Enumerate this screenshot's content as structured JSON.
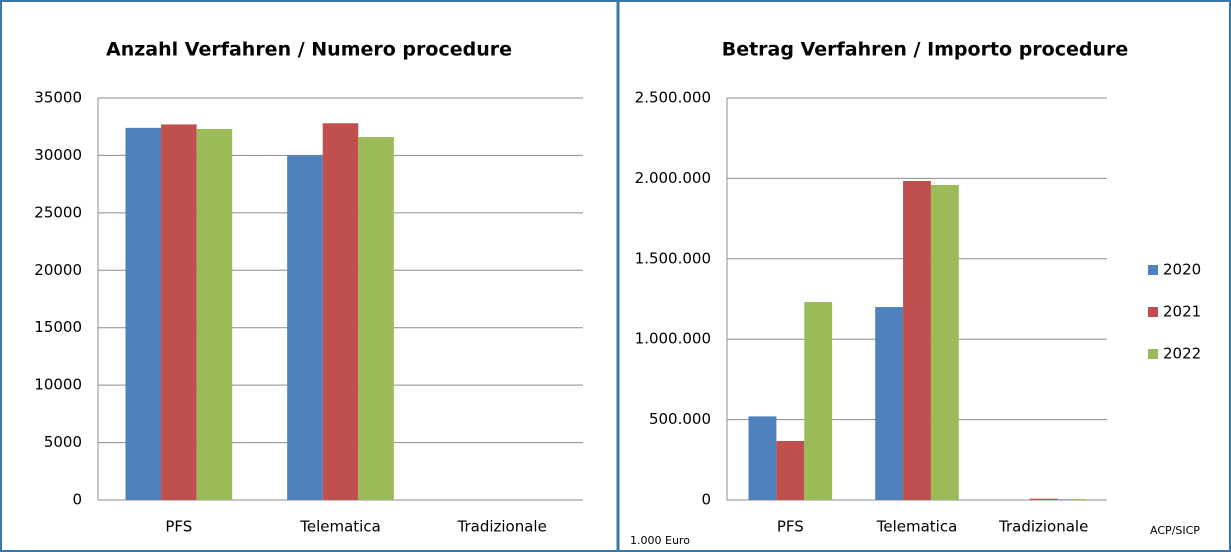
{
  "chart_data": [
    {
      "type": "bar",
      "title": "Anzahl Verfahren / Numero procedure",
      "categories": [
        "PFS",
        "Telematica",
        "Tradizionale"
      ],
      "series": [
        {
          "name": "2020",
          "color": "#4f81bd",
          "values": [
            32400,
            30000,
            0
          ]
        },
        {
          "name": "2021",
          "color": "#c0504d",
          "values": [
            32700,
            32800,
            0
          ]
        },
        {
          "name": "2022",
          "color": "#9bbb59",
          "values": [
            32300,
            31600,
            0
          ]
        }
      ],
      "ylim": [
        0,
        35000
      ],
      "yticks": [
        0,
        5000,
        10000,
        15000,
        20000,
        25000,
        30000,
        35000
      ],
      "grid": true,
      "legend": false
    },
    {
      "type": "bar",
      "title": "Betrag Verfahren / Importo procedure",
      "categories": [
        "PFS",
        "Telematica",
        "Tradizionale"
      ],
      "series": [
        {
          "name": "2020",
          "color": "#4f81bd",
          "values": [
            520000,
            1200000,
            0
          ]
        },
        {
          "name": "2021",
          "color": "#c0504d",
          "values": [
            367000,
            1984000,
            8000
          ]
        },
        {
          "name": "2022",
          "color": "#9bbb59",
          "values": [
            1231000,
            1959000,
            6000
          ]
        }
      ],
      "ylim": [
        0,
        2500000
      ],
      "yticks": [
        0,
        {
          "value": 500000,
          "label": "500.000"
        },
        {
          "value": 1000000,
          "label": "1.000.000"
        },
        {
          "value": 1500000,
          "label": "1.500.000"
        },
        {
          "value": 2000000,
          "label": "2.000.000"
        },
        {
          "value": 2500000,
          "label": "2.500.000"
        }
      ],
      "grid": true,
      "legend": "right",
      "unit_note": "1.000 Euro",
      "source": "ACP/SICP"
    }
  ]
}
